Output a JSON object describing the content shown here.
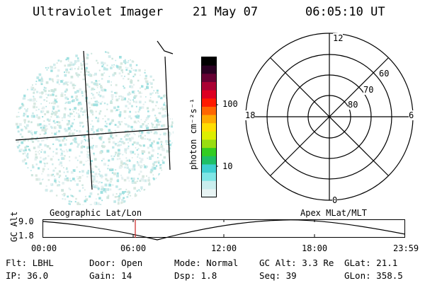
{
  "header": {
    "title": "Ultraviolet Imager",
    "date": "21 May 07",
    "time": "06:05:10 UT"
  },
  "colorbar": {
    "unit_label": "photon cm⁻²s⁻¹",
    "ticks": [
      "100",
      "10"
    ],
    "colors": [
      "#e8f4f4",
      "#c9eeee",
      "#7fe6e6",
      "#3fcfd0",
      "#1fbf66",
      "#33cc22",
      "#99dd11",
      "#ddee00",
      "#ffdd00",
      "#ffaa00",
      "#ff6600",
      "#ff1a00",
      "#dd0022",
      "#aa0033",
      "#660033",
      "#2a0022",
      "#000000"
    ]
  },
  "polar": {
    "labels": {
      "top": "12",
      "bottom": "0",
      "left": "18",
      "right": "6"
    },
    "ring_labels": [
      "60",
      "70",
      "80"
    ]
  },
  "timeline": {
    "left_label": "Geographic Lat/Lon",
    "right_label": "Apex MLat/MLT",
    "y_axis_label": "GC Alt",
    "y_ticks": [
      "9.0",
      "1.8"
    ],
    "x_ticks": [
      "00:00",
      "06:00",
      "12:00",
      "18:00",
      "23:59"
    ],
    "current_time_marker": "06:05",
    "marker_color": "#cc2222"
  },
  "footer": {
    "row1": [
      {
        "label": "Flt:",
        "value": "LBHL"
      },
      {
        "label": "Door:",
        "value": "Open"
      },
      {
        "label": "Mode:",
        "value": "Normal"
      },
      {
        "label": "GC Alt:",
        "value": "3.3 Re"
      },
      {
        "label": "GLat:",
        "value": "21.1"
      }
    ],
    "row2": [
      {
        "label": "IP:",
        "value": "36.0"
      },
      {
        "label": "Gain:",
        "value": "14"
      },
      {
        "label": "Dsp:",
        "value": "1.8"
      },
      {
        "label": "Seq:",
        "value": "39"
      },
      {
        "label": "GLon:",
        "value": "358.5"
      }
    ]
  }
}
